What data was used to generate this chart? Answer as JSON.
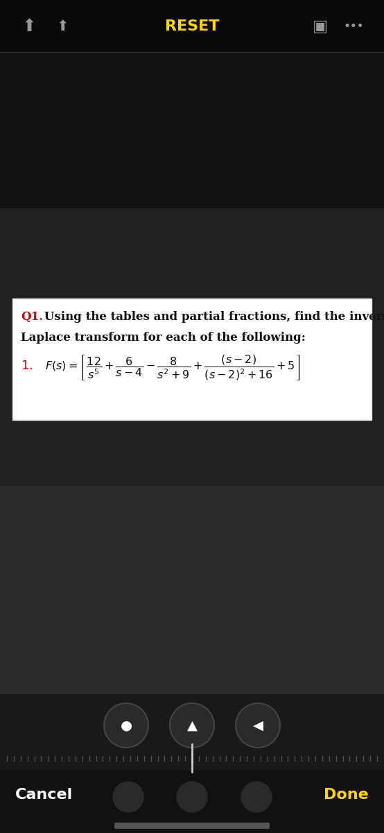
{
  "bg_color": "#111111",
  "bg_gradient_top": "#0a0a0a",
  "bg_gradient_mid": "#1c1c1c",
  "bg_gradient_bot": "#2a2a2a",
  "reset_text": "RESET",
  "reset_color": "#FFD700",
  "white_box_color": "#ffffff",
  "white_box_border": "#cccccc",
  "q1_color": "#cc0000",
  "q1_label": "Q1.",
  "question_line1": " Using the tables and partial fractions, find the inverse",
  "question_line2": "Laplace transform for each of the following:",
  "formula_color": "#cc0000",
  "text_color": "#111111",
  "cancel_text": "Cancel",
  "done_text": "Done",
  "cancel_color": "#ffffff",
  "done_color": "#FFD700",
  "icon_color": "#888888",
  "btn_bg": "#2a2a2a",
  "tick_color": "#555555",
  "cursor_color": "#bbbbbb",
  "home_bar_color": "#555555"
}
